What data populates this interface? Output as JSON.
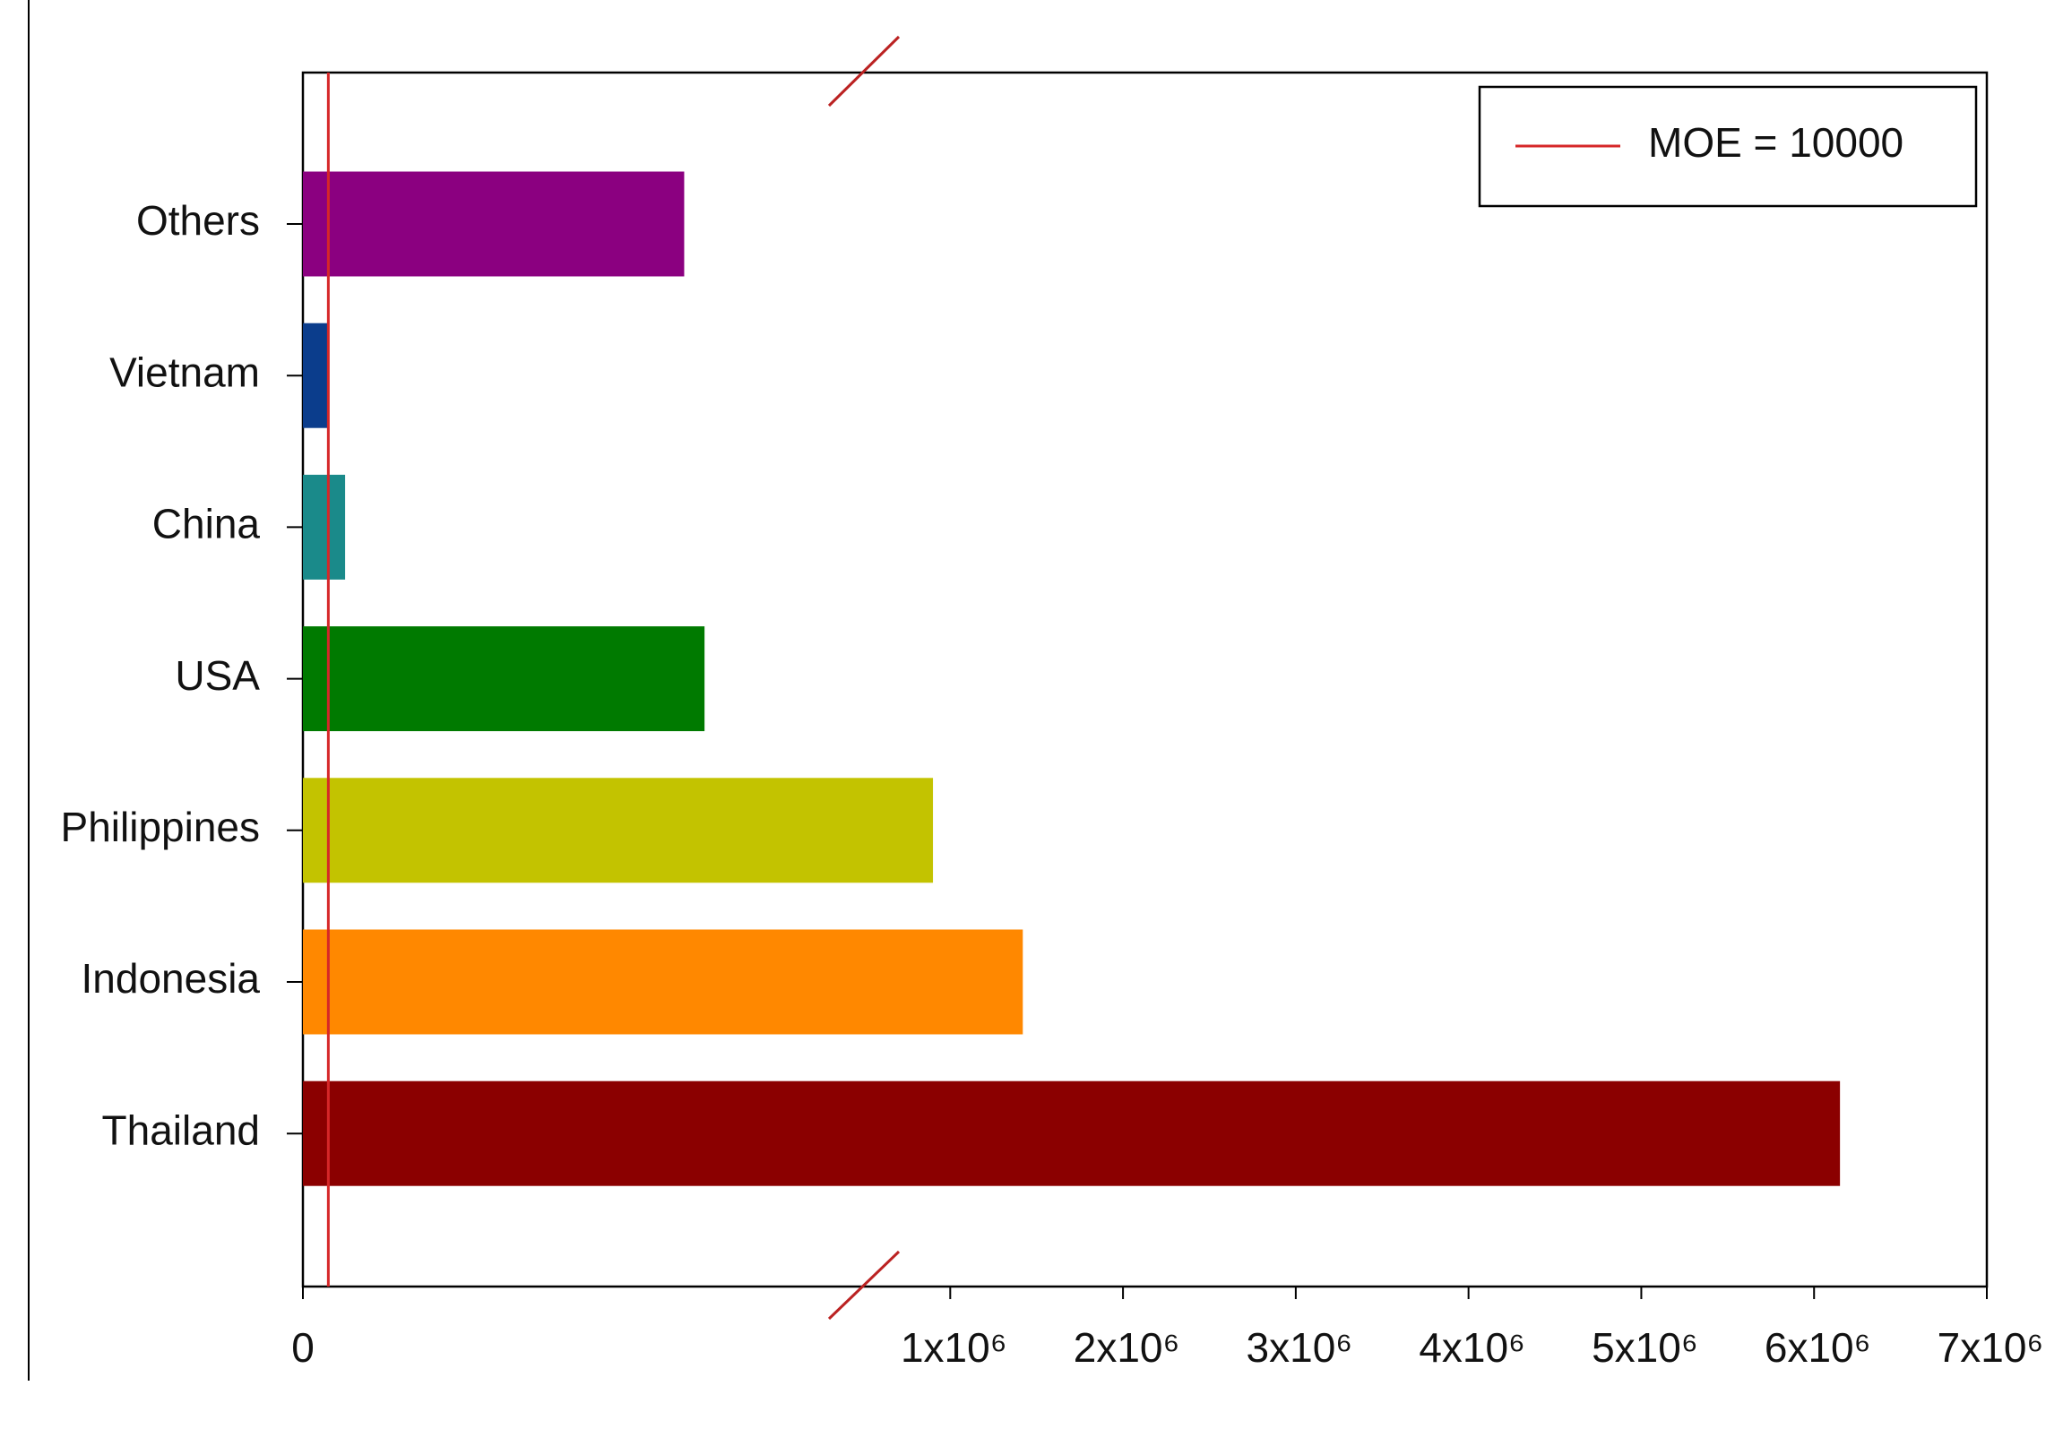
{
  "chart_data": {
    "type": "bar",
    "orientation": "horizontal",
    "categories": [
      "Others",
      "Vietnam",
      "China",
      "USA",
      "Philippines",
      "Indonesia",
      "Thailand"
    ],
    "values": [
      150000,
      10000,
      16600,
      158000,
      900000,
      1420000,
      6150000
    ],
    "colors": [
      "#8b0080",
      "#0b3d8c",
      "#1a8a8a",
      "#007a00",
      "#c3c300",
      "#ff8800",
      "#8b0000"
    ],
    "xlim": [
      0,
      7000000
    ],
    "axis_break": [
      220000,
      490000
    ],
    "xticks": [
      0,
      {
        "value": 1000000,
        "label": "1x10⁶"
      },
      {
        "value": 2000000,
        "label": "2x10⁶"
      },
      {
        "value": 3000000,
        "label": "3x10⁶"
      },
      {
        "value": 4000000,
        "label": "4x10⁶"
      },
      {
        "value": 5000000,
        "label": "5x10⁶"
      },
      {
        "value": 6000000,
        "label": "6x10⁶"
      },
      {
        "value": 7000000,
        "label": "7x10⁶"
      }
    ],
    "reference_line": {
      "value": 10000,
      "label": "MOE = 10000",
      "color": "#d62728"
    },
    "legend": "top-right"
  }
}
